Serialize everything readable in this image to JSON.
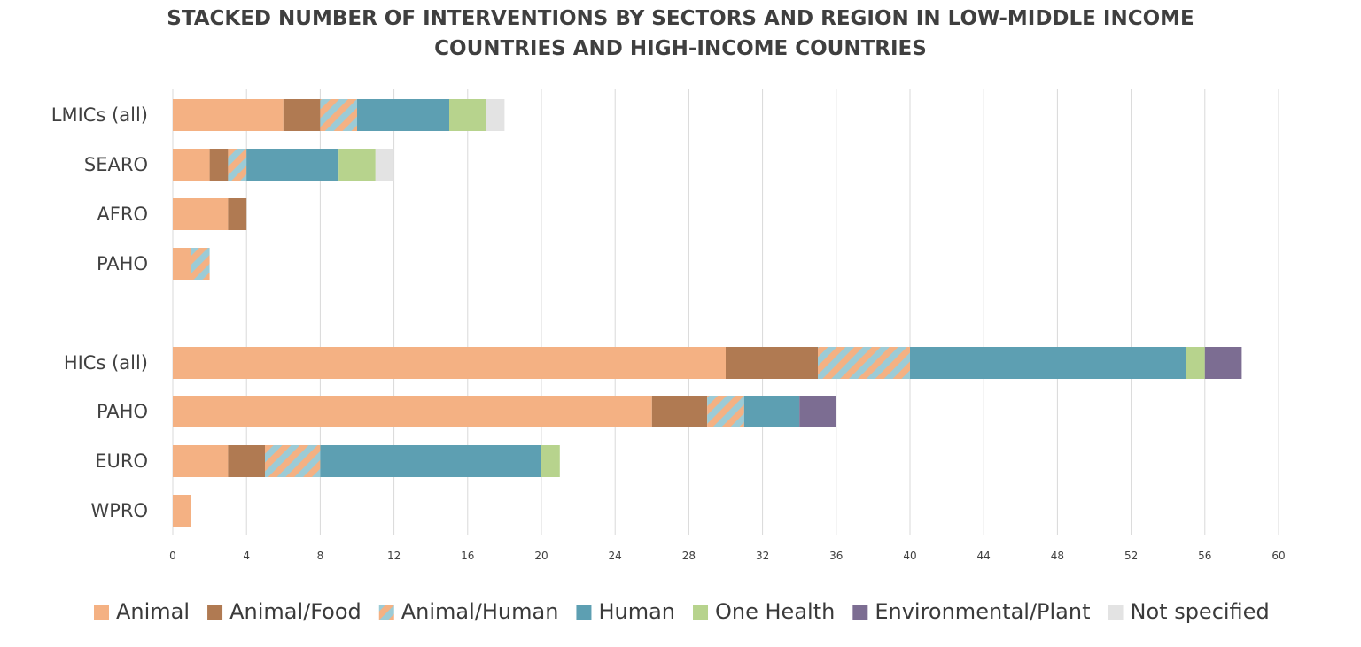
{
  "chart_data": {
    "type": "bar",
    "orientation": "horizontal",
    "stacked": true,
    "title_lines": [
      "STACKED NUMBER OF INTERVENTIONS BY SECTORS AND REGION IN LOW-MIDDLE INCOME",
      "COUNTRIES AND HIGH-INCOME COUNTRIES"
    ],
    "categories": [
      "LMICs (all)",
      "SEARO",
      "AFRO",
      "PAHO",
      "",
      "HICs (all)",
      "PAHO",
      "EURO",
      "WPRO"
    ],
    "xlim": [
      0,
      60
    ],
    "x_ticks": [
      "0",
      "4",
      "8",
      "12",
      "16",
      "20",
      "24",
      "28",
      "32",
      "36",
      "40",
      "44",
      "48",
      "52",
      "56",
      "60"
    ],
    "grid": true,
    "legend_position": "bottom",
    "series": [
      {
        "name": "Animal",
        "color": "#f4b183",
        "pattern": "solid",
        "values": [
          6,
          2,
          3,
          1,
          0,
          30,
          26,
          3,
          1
        ]
      },
      {
        "name": "Animal/Food",
        "color": "#b07a52",
        "pattern": "solid",
        "values": [
          2,
          1,
          1,
          0,
          0,
          5,
          3,
          2,
          0
        ]
      },
      {
        "name": "Animal/Human",
        "color": "#f4b183",
        "color2": "#9ccbd6",
        "pattern": "stripes",
        "values": [
          2,
          1,
          0,
          1,
          0,
          5,
          2,
          3,
          0
        ]
      },
      {
        "name": "Human",
        "color": "#5d9fb2",
        "pattern": "solid",
        "values": [
          5,
          5,
          0,
          0,
          0,
          15,
          3,
          12,
          0
        ]
      },
      {
        "name": "One Health",
        "color": "#b7d38d",
        "pattern": "solid",
        "values": [
          2,
          2,
          0,
          0,
          0,
          1,
          0,
          1,
          0
        ]
      },
      {
        "name": "Environmental/Plant",
        "color": "#7c6d92",
        "pattern": "solid",
        "values": [
          0,
          0,
          0,
          0,
          0,
          2,
          2,
          0,
          0
        ]
      },
      {
        "name": "Not specified",
        "color": "#e3e3e3",
        "pattern": "solid",
        "values": [
          1,
          1,
          0,
          0,
          0,
          0,
          0,
          0,
          0
        ]
      }
    ]
  }
}
